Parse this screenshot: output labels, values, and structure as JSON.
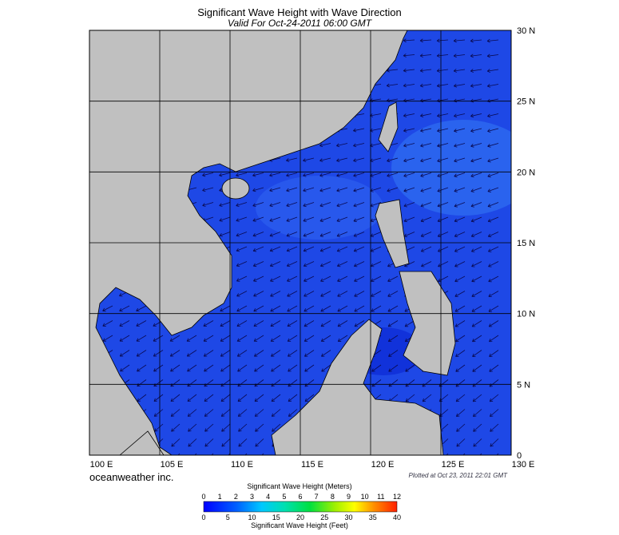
{
  "header": {
    "title": "Significant Wave Height with Wave Direction",
    "subtitle": "Valid For Oct-24-2011 06:00 GMT"
  },
  "map": {
    "lon_labels": [
      "100 E",
      "105 E",
      "110 E",
      "115 E",
      "120 E",
      "125 E",
      "130 E"
    ],
    "lat_labels": [
      "30 N",
      "25 N",
      "20 N",
      "15 N",
      "10 N",
      "5 N",
      "0"
    ],
    "credit": "oceanweather inc.",
    "plotted": "Plotted at Oct 23, 2011 22:01 GMT"
  },
  "colorbar": {
    "title_meters": "Significant Wave Height (Meters)",
    "meters": [
      "0",
      "1",
      "2",
      "3",
      "4",
      "5",
      "6",
      "7",
      "8",
      "9",
      "10",
      "11",
      "12"
    ],
    "feet": [
      "0",
      "5",
      "10",
      "15",
      "20",
      "25",
      "30",
      "35",
      "40"
    ],
    "title_feet": "Significant Wave Height (Feet)"
  }
}
